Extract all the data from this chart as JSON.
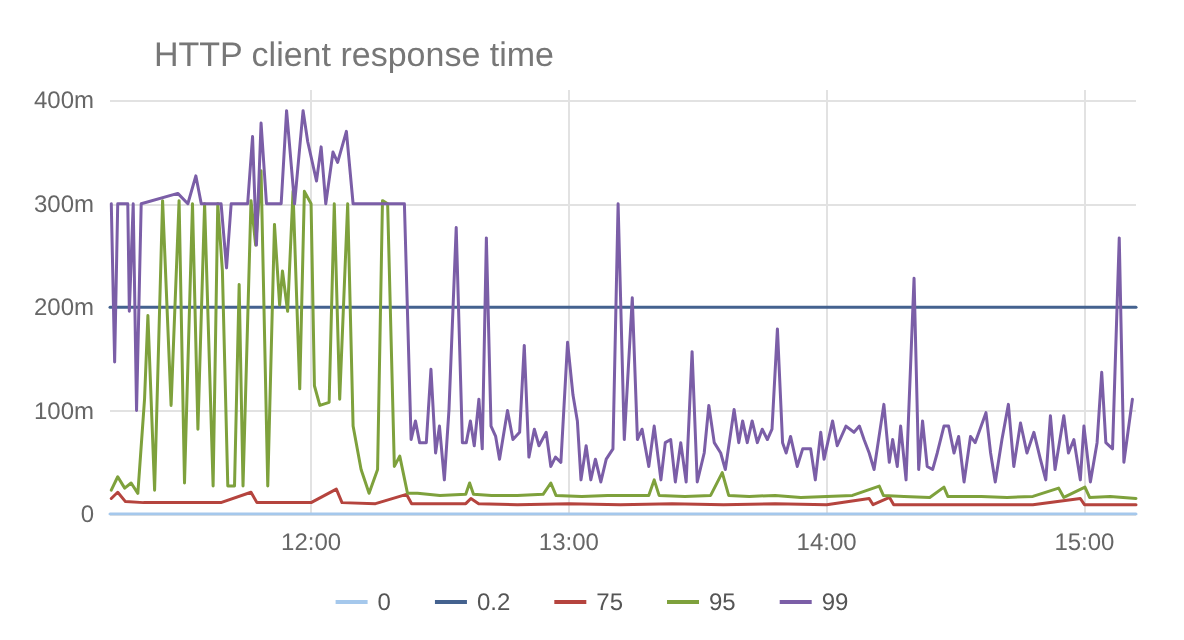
{
  "chart_data": {
    "type": "line",
    "title": "HTTP client response time",
    "xlim": [
      11.22,
      15.2
    ],
    "xticks": [
      {
        "value": 12,
        "label": "12:00"
      },
      {
        "value": 13,
        "label": "13:00"
      },
      {
        "value": 14,
        "label": "14:00"
      },
      {
        "value": 15,
        "label": "15:00"
      }
    ],
    "ylim": [
      0,
      410
    ],
    "yticks": [
      {
        "value": 0,
        "label": "0"
      },
      {
        "value": 100,
        "label": "100m"
      },
      {
        "value": 200,
        "label": "200m"
      },
      {
        "value": 300,
        "label": "300m"
      },
      {
        "value": 400,
        "label": "400m"
      }
    ],
    "grid": true,
    "legend": "bottom",
    "marker": "none",
    "line_style": "solid",
    "series": [
      {
        "name": "0",
        "color": "#a5c8ec",
        "x": [
          11.22,
          15.2
        ],
        "values": [
          0,
          0
        ]
      },
      {
        "name": "0.2",
        "color": "#44628f",
        "x": [
          11.22,
          15.2
        ],
        "values": [
          200,
          200
        ]
      },
      {
        "name": "75",
        "color": "#b5443e",
        "x": [
          11.225,
          11.25,
          11.28,
          11.35,
          11.45,
          11.55,
          11.65,
          11.767,
          11.79,
          11.9,
          12.0,
          12.098,
          12.12,
          12.25,
          12.37,
          12.39,
          12.5,
          12.6,
          12.62,
          12.65,
          12.8,
          13.0,
          13.2,
          13.4,
          13.6,
          13.8,
          14.0,
          14.165,
          14.18,
          14.244,
          14.26,
          14.4,
          14.6,
          14.8,
          14.984,
          15.0,
          15.2
        ],
        "values": [
          15,
          21,
          12,
          11,
          11,
          11,
          11,
          21,
          11,
          11,
          11,
          24,
          11,
          10,
          19,
          10,
          10,
          10,
          15,
          10,
          9,
          10,
          9,
          10,
          9,
          10,
          9,
          15,
          9,
          16,
          9,
          9,
          9,
          9,
          15,
          9,
          9
        ]
      },
      {
        "name": "95",
        "color": "#7ea13c",
        "x": [
          11.225,
          11.25,
          11.277,
          11.302,
          11.328,
          11.354,
          11.367,
          11.393,
          11.424,
          11.457,
          11.488,
          11.509,
          11.54,
          11.561,
          11.587,
          11.62,
          11.638,
          11.656,
          11.677,
          11.703,
          11.721,
          11.736,
          11.767,
          11.785,
          11.806,
          11.832,
          11.858,
          11.878,
          11.889,
          11.909,
          11.93,
          11.956,
          11.974,
          12.0,
          12.013,
          12.034,
          12.07,
          12.09,
          12.111,
          12.142,
          12.163,
          12.194,
          12.225,
          12.258,
          12.277,
          12.297,
          12.323,
          12.344,
          12.374,
          12.413,
          12.5,
          12.6,
          12.615,
          12.63,
          12.7,
          12.8,
          12.9,
          12.93,
          12.95,
          13.05,
          13.15,
          13.25,
          13.31,
          13.331,
          13.35,
          13.45,
          13.55,
          13.595,
          13.62,
          13.7,
          13.8,
          13.9,
          14.0,
          14.1,
          14.204,
          14.22,
          14.3,
          14.4,
          14.455,
          14.47,
          14.6,
          14.7,
          14.8,
          14.9,
          14.92,
          15.002,
          15.02,
          15.1,
          15.2
        ],
        "values": [
          23,
          36,
          25,
          30,
          20,
          111,
          192,
          23,
          303,
          105,
          303,
          30,
          300,
          82,
          300,
          27,
          300,
          235,
          27,
          27,
          222,
          27,
          303,
          260,
          332,
          27,
          280,
          202,
          235,
          196,
          312,
          121,
          312,
          300,
          124,
          105,
          108,
          300,
          111,
          300,
          85,
          43,
          20,
          43,
          303,
          300,
          46,
          56,
          20,
          20,
          18,
          19,
          30,
          19,
          18,
          18,
          19,
          30,
          18,
          17,
          18,
          18,
          18,
          33,
          18,
          17,
          18,
          40,
          18,
          17,
          18,
          16,
          17,
          18,
          27,
          18,
          17,
          16,
          26,
          17,
          17,
          16,
          17,
          25,
          16,
          26,
          16,
          17,
          15
        ]
      },
      {
        "name": "99",
        "color": "#7b5ea7",
        "x": [
          11.225,
          11.238,
          11.25,
          11.289,
          11.295,
          11.31,
          11.323,
          11.341,
          11.483,
          11.522,
          11.553,
          11.574,
          11.651,
          11.672,
          11.69,
          11.754,
          11.773,
          11.788,
          11.806,
          11.827,
          11.884,
          11.905,
          11.936,
          11.969,
          11.987,
          12.021,
          12.039,
          12.057,
          12.085,
          12.103,
          12.137,
          12.163,
          12.362,
          12.388,
          12.405,
          12.421,
          12.447,
          12.465,
          12.483,
          12.498,
          12.517,
          12.535,
          12.563,
          12.587,
          12.602,
          12.618,
          12.633,
          12.651,
          12.664,
          12.68,
          12.698,
          12.716,
          12.731,
          12.762,
          12.783,
          12.809,
          12.827,
          12.845,
          12.866,
          12.884,
          12.912,
          12.93,
          12.948,
          12.969,
          12.995,
          13.016,
          13.033,
          13.047,
          13.067,
          13.085,
          13.103,
          13.124,
          13.145,
          13.171,
          13.191,
          13.215,
          13.246,
          13.266,
          13.284,
          13.31,
          13.331,
          13.357,
          13.374,
          13.395,
          13.413,
          13.434,
          13.455,
          13.478,
          13.498,
          13.525,
          13.543,
          13.564,
          13.589,
          13.607,
          13.641,
          13.659,
          13.674,
          13.692,
          13.711,
          13.731,
          13.75,
          13.77,
          13.788,
          13.809,
          13.829,
          13.843,
          13.86,
          13.886,
          13.907,
          13.938,
          13.956,
          13.977,
          13.99,
          14.023,
          14.041,
          14.075,
          14.106,
          14.127,
          14.145,
          14.165,
          14.184,
          14.222,
          14.243,
          14.256,
          14.274,
          14.287,
          14.308,
          14.339,
          14.357,
          14.372,
          14.39,
          14.411,
          14.429,
          14.455,
          14.473,
          14.494,
          14.512,
          14.533,
          14.558,
          14.576,
          14.618,
          14.636,
          14.654,
          14.68,
          14.705,
          14.726,
          14.752,
          14.777,
          14.804,
          14.829,
          14.85,
          14.868,
          14.886,
          14.92,
          14.938,
          14.959,
          14.984,
          14.998,
          15.023,
          15.049,
          15.067,
          15.083,
          15.109,
          15.135,
          15.153,
          15.186
        ],
        "values": [
          300,
          147,
          300,
          300,
          196,
          300,
          100,
          300,
          310,
          300,
          327,
          300,
          300,
          238,
          300,
          300,
          365,
          260,
          378,
          300,
          300,
          390,
          300,
          390,
          360,
          322,
          355,
          300,
          350,
          340,
          370,
          300,
          300,
          72,
          90,
          69,
          69,
          140,
          59,
          85,
          33,
          101,
          277,
          69,
          69,
          90,
          66,
          111,
          63,
          267,
          85,
          75,
          53,
          100,
          72,
          79,
          163,
          55,
          82,
          66,
          79,
          46,
          55,
          50,
          166,
          115,
          90,
          33,
          66,
          33,
          53,
          31,
          53,
          63,
          300,
          72,
          209,
          72,
          82,
          46,
          85,
          33,
          69,
          72,
          31,
          69,
          31,
          157,
          31,
          59,
          105,
          69,
          59,
          43,
          101,
          69,
          90,
          69,
          90,
          69,
          82,
          72,
          82,
          179,
          69,
          59,
          75,
          46,
          63,
          63,
          33,
          79,
          53,
          90,
          66,
          85,
          79,
          85,
          72,
          59,
          43,
          106,
          50,
          72,
          46,
          85,
          33,
          228,
          43,
          90,
          46,
          43,
          59,
          85,
          85,
          59,
          75,
          31,
          75,
          69,
          98,
          59,
          31,
          72,
          106,
          46,
          88,
          59,
          79,
          53,
          33,
          95,
          43,
          95,
          59,
          72,
          33,
          85,
          31,
          69,
          137,
          69,
          63,
          267,
          50,
          111
        ]
      }
    ]
  }
}
